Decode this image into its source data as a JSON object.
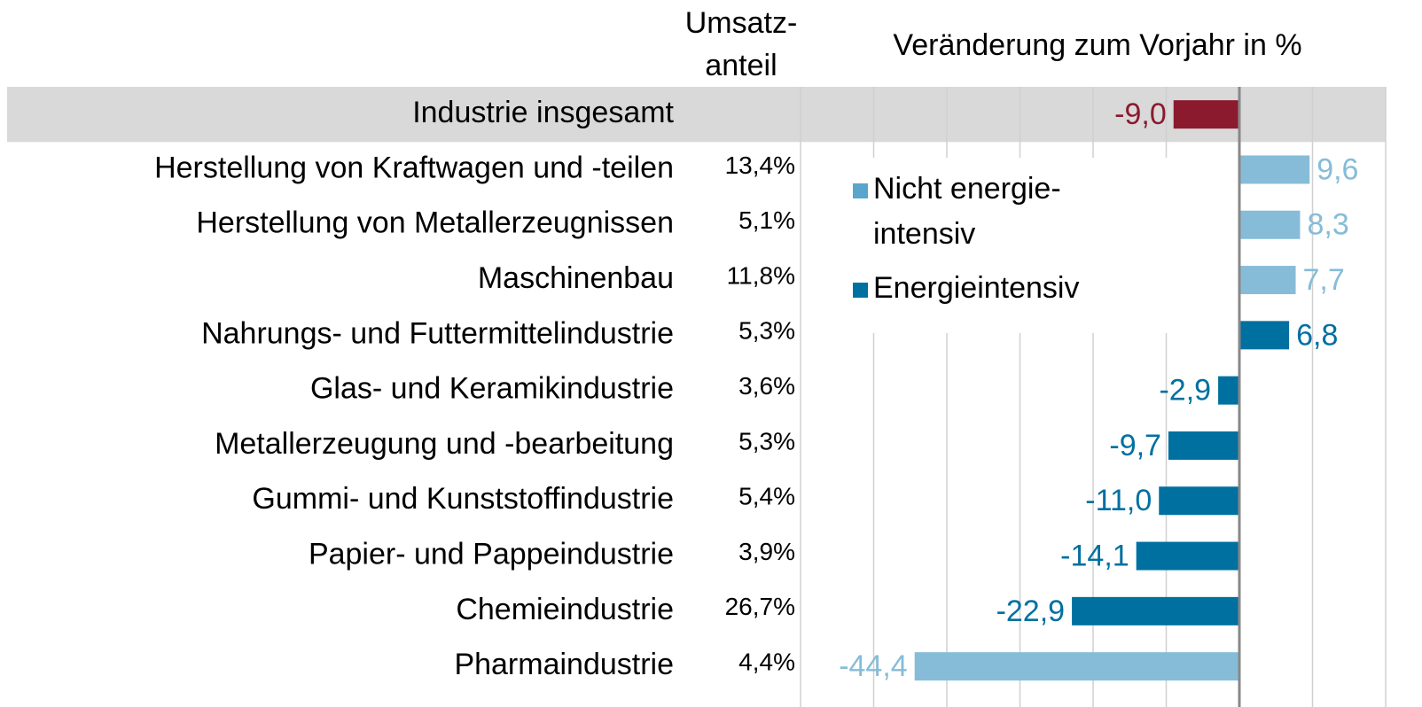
{
  "chart_data": {
    "type": "bar",
    "orientation": "horizontal",
    "column_headers": {
      "share": [
        "Umsatz-",
        "anteil"
      ],
      "change": "Veränderung zum Vorjahr in %"
    },
    "categories": [
      "Industrie insgesamt",
      "Herstellung von Kraftwagen und -teilen",
      "Herstellung von Metallerzeugnissen",
      "Maschinenbau",
      "Nahrungs- und Futtermittelindustrie",
      "Glas- und Keramikindustrie",
      "Metallerzeugung und -bearbeitung",
      "Gummi- und Kunststoffindustrie",
      "Papier- und Pappeindustrie",
      "Chemieindustrie",
      "Pharmaindustrie"
    ],
    "shares": [
      null,
      "13,4%",
      "5,1%",
      "11,8%",
      "5,3%",
      "3,6%",
      "5,3%",
      "5,4%",
      "3,9%",
      "26,7%",
      "4,4%"
    ],
    "values": [
      -9.0,
      9.6,
      8.3,
      7.7,
      6.8,
      -2.9,
      -9.7,
      -11.0,
      -14.1,
      -22.9,
      -44.4
    ],
    "value_labels": [
      "-9,0",
      "9,6",
      "8,3",
      "7,7",
      "6,8",
      "-2,9",
      "-9,7",
      "-11,0",
      "-14,1",
      "-22,9",
      "-44,4"
    ],
    "colors": [
      "#8b1a2e",
      "#86bcd8",
      "#86bcd8",
      "#86bcd8",
      "#0070a0",
      "#0070a0",
      "#0070a0",
      "#0070a0",
      "#0070a0",
      "#0070a0",
      "#86bcd8"
    ],
    "legend": [
      {
        "name": [
          "Nicht energie-",
          "intensiv"
        ],
        "color": "#5aa5cb"
      },
      {
        "name": [
          "Energieintensiv"
        ],
        "color": "#0070a0"
      }
    ],
    "highlight_row": 0,
    "highlight_color": "#d9d9d9",
    "xlim": [
      -60,
      20
    ],
    "xticks": [
      -60,
      -50,
      -40,
      -30,
      -20,
      -10,
      0,
      10,
      20
    ],
    "grid": true
  }
}
